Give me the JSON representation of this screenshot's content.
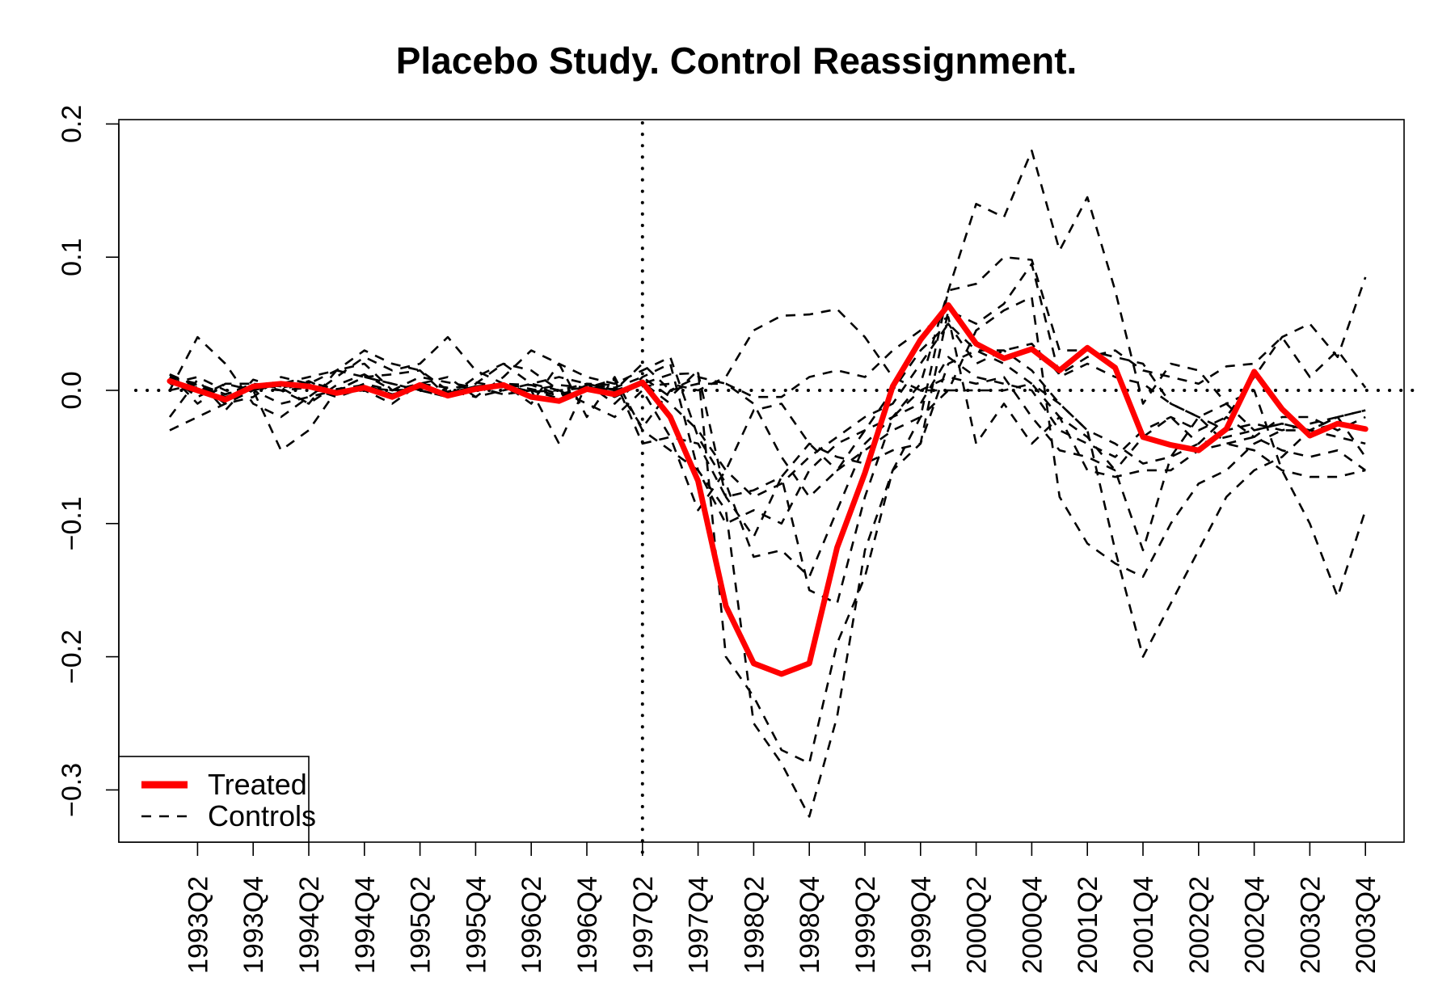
{
  "chart_data": {
    "type": "line",
    "title": "Placebo Study. Control Reassignment.",
    "xlabel": "",
    "ylabel": "",
    "x_tick_labels": [
      "1993Q2",
      "1993Q4",
      "1994Q2",
      "1994Q4",
      "1995Q2",
      "1995Q4",
      "1996Q2",
      "1996Q4",
      "1997Q2",
      "1997Q4",
      "1998Q2",
      "1998Q4",
      "1999Q2",
      "1999Q4",
      "2000Q2",
      "2000Q4",
      "2001Q2",
      "2001Q4",
      "2002Q2",
      "2002Q4",
      "2003Q2",
      "2003Q4"
    ],
    "y_ticks": [
      "−0.3",
      "−0.2",
      "−0.1",
      "0.0",
      "0.1",
      "0.2"
    ],
    "ylim": [
      -0.34,
      0.2
    ],
    "reference_lines": {
      "vertical_at": "1997Q2",
      "horizontal_at": 0.0
    },
    "legend": {
      "position": "bottom-left",
      "entries": [
        {
          "label": "Treated",
          "color": "#ff0000",
          "style": "solid"
        },
        {
          "label": "Controls",
          "color": "#000000",
          "style": "dashed"
        }
      ]
    },
    "x": [
      "1993Q1",
      "1993Q2",
      "1993Q3",
      "1993Q4",
      "1994Q1",
      "1994Q2",
      "1994Q3",
      "1994Q4",
      "1995Q1",
      "1995Q2",
      "1995Q3",
      "1995Q4",
      "1996Q1",
      "1996Q2",
      "1996Q3",
      "1996Q4",
      "1997Q1",
      "1997Q2",
      "1997Q3",
      "1997Q4",
      "1998Q1",
      "1998Q2",
      "1998Q3",
      "1998Q4",
      "1999Q1",
      "1999Q2",
      "1999Q3",
      "1999Q4",
      "2000Q1",
      "2000Q2",
      "2000Q3",
      "2000Q4",
      "2001Q1",
      "2001Q2",
      "2001Q3",
      "2001Q4",
      "2002Q1",
      "2002Q2",
      "2002Q3",
      "2002Q4",
      "2003Q1",
      "2003Q2",
      "2003Q3",
      "2003Q4"
    ],
    "series": [
      {
        "name": "Treated",
        "color": "#ff0000",
        "style": "solid",
        "values": [
          0.007,
          0.0,
          -0.007,
          0.003,
          0.005,
          0.003,
          -0.002,
          0.002,
          -0.005,
          0.004,
          -0.004,
          0.001,
          0.004,
          -0.005,
          -0.008,
          0.001,
          -0.003,
          0.006,
          -0.02,
          -0.068,
          -0.162,
          -0.205,
          -0.213,
          -0.205,
          -0.118,
          -0.062,
          0.003,
          0.038,
          0.064,
          0.035,
          0.024,
          0.031,
          0.015,
          0.032,
          0.017,
          -0.035,
          -0.041,
          -0.045,
          -0.029,
          0.014,
          -0.014,
          -0.034,
          -0.025,
          -0.029
        ]
      },
      {
        "style": "dashed",
        "color": "#000000",
        "values": [
          0.012,
          0.003,
          -0.008,
          0.004,
          0.002,
          0.006,
          0.001,
          0.004,
          -0.003,
          0.002,
          -0.002,
          0.003,
          0.005,
          0.001,
          -0.004,
          0.003,
          0.0,
          0.006,
          -0.01,
          -0.03,
          -0.06,
          -0.08,
          -0.07,
          -0.05,
          -0.035,
          -0.02,
          -0.01,
          0.02,
          0.05,
          0.03,
          0.02,
          0.005,
          -0.01,
          -0.03,
          -0.04,
          -0.055,
          -0.05,
          -0.04,
          -0.035,
          -0.03,
          -0.025,
          -0.03,
          -0.035,
          -0.04
        ]
      },
      {
        "style": "dashed",
        "color": "#000000",
        "values": [
          -0.03,
          -0.02,
          -0.01,
          0.0,
          0.005,
          0.01,
          0.015,
          0.01,
          0.005,
          0.0,
          -0.005,
          0.0,
          0.005,
          0.004,
          -0.003,
          0.002,
          0.008,
          -0.04,
          -0.035,
          -0.04,
          -0.08,
          -0.075,
          -0.065,
          -0.04,
          -0.05,
          -0.055,
          -0.045,
          -0.04,
          0.06,
          0.05,
          0.065,
          0.095,
          0.01,
          0.02,
          0.01,
          0.005,
          -0.01,
          -0.02,
          -0.03,
          -0.025,
          -0.03,
          -0.025,
          -0.02,
          -0.015
        ]
      },
      {
        "style": "dashed",
        "color": "#000000",
        "values": [
          0.0,
          0.04,
          0.02,
          -0.01,
          -0.02,
          -0.005,
          0.01,
          0.025,
          0.015,
          0.02,
          0.04,
          0.015,
          0.005,
          -0.01,
          0.02,
          0.01,
          0.005,
          0.015,
          0.025,
          -0.035,
          -0.07,
          -0.125,
          -0.12,
          -0.14,
          -0.09,
          -0.04,
          -0.02,
          0.005,
          0.075,
          0.14,
          0.13,
          0.18,
          0.105,
          0.145,
          0.075,
          -0.01,
          0.02,
          0.015,
          -0.01,
          -0.03,
          -0.025,
          -0.03,
          -0.02,
          -0.015
        ]
      },
      {
        "style": "dashed",
        "color": "#000000",
        "values": [
          0.01,
          -0.005,
          0.005,
          0.0,
          -0.01,
          -0.005,
          0.0,
          0.01,
          0.005,
          0.0,
          -0.005,
          0.01,
          0.02,
          0.015,
          0.0,
          -0.01,
          -0.02,
          0.0,
          -0.035,
          -0.09,
          -0.06,
          -0.015,
          -0.01,
          -0.04,
          -0.06,
          -0.045,
          -0.03,
          -0.02,
          0.075,
          0.08,
          0.1,
          0.098,
          0.03,
          0.03,
          0.025,
          0.02,
          -0.01,
          -0.02,
          -0.04,
          -0.035,
          -0.045,
          -0.05,
          -0.045,
          -0.06
        ]
      },
      {
        "style": "dashed",
        "color": "#000000",
        "values": [
          0.005,
          0.01,
          0.0,
          0.0,
          -0.045,
          -0.03,
          0.0,
          0.01,
          0.012,
          0.015,
          -0.005,
          0.005,
          0.02,
          0.005,
          0.0,
          0.005,
          -0.01,
          0.01,
          0.02,
          -0.06,
          -0.09,
          -0.25,
          -0.28,
          -0.32,
          -0.245,
          -0.12,
          -0.06,
          -0.04,
          0.02,
          0.03,
          0.03,
          0.015,
          -0.01,
          -0.03,
          -0.12,
          -0.2,
          -0.16,
          -0.12,
          -0.08,
          -0.06,
          -0.05,
          -0.03,
          -0.02,
          -0.05
        ]
      },
      {
        "style": "dashed",
        "color": "#000000",
        "values": [
          0.008,
          0.004,
          -0.005,
          0.002,
          0.0,
          0.007,
          -0.003,
          0.005,
          0.0,
          0.003,
          -0.001,
          0.006,
          0.002,
          0.0,
          -0.006,
          0.004,
          0.002,
          0.01,
          -0.005,
          0.015,
          -0.2,
          -0.23,
          -0.27,
          -0.28,
          -0.19,
          -0.14,
          -0.06,
          -0.02,
          0.0,
          0.045,
          0.06,
          0.07,
          -0.08,
          -0.115,
          -0.13,
          -0.14,
          -0.1,
          -0.07,
          -0.06,
          -0.04,
          -0.03,
          -0.03,
          -0.025,
          -0.03
        ]
      },
      {
        "style": "dashed",
        "color": "#000000",
        "values": [
          0.005,
          0.002,
          -0.003,
          0.003,
          0.0,
          0.002,
          -0.005,
          0.002,
          0.0,
          0.001,
          -0.002,
          0.003,
          0.004,
          -0.001,
          0.0,
          0.002,
          0.001,
          0.003,
          0.005,
          0.0,
          0.01,
          0.045,
          0.056,
          0.057,
          0.061,
          0.04,
          0.01,
          0.0,
          0.0,
          0.0,
          0.0,
          0.005,
          -0.02,
          -0.035,
          -0.06,
          -0.12,
          -0.05,
          -0.02,
          -0.01,
          0.0,
          -0.06,
          -0.1,
          -0.155,
          -0.09
        ]
      },
      {
        "style": "dashed",
        "color": "#000000",
        "values": [
          0.012,
          -0.01,
          0.005,
          0.005,
          0.0,
          -0.01,
          0.015,
          0.02,
          0.0,
          0.005,
          0.01,
          -0.005,
          0.0,
          0.005,
          0.01,
          0.005,
          0.0,
          0.02,
          0.0,
          0.005,
          0.005,
          -0.005,
          -0.005,
          0.01,
          0.015,
          0.01,
          0.03,
          0.045,
          0.055,
          -0.04,
          -0.01,
          -0.04,
          -0.02,
          -0.06,
          -0.065,
          -0.06,
          -0.06,
          -0.045,
          -0.04,
          -0.045,
          -0.06,
          -0.065,
          -0.065,
          -0.06
        ]
      },
      {
        "style": "dashed",
        "color": "#000000",
        "values": [
          0.0,
          0.005,
          -0.01,
          -0.005,
          0.01,
          0.005,
          0.015,
          0.03,
          0.02,
          0.015,
          0.0,
          -0.005,
          0.01,
          0.03,
          0.02,
          -0.02,
          0.01,
          -0.03,
          -0.045,
          -0.06,
          -0.1,
          -0.09,
          -0.1,
          -0.06,
          -0.04,
          -0.03,
          -0.02,
          -0.01,
          0.025,
          0.01,
          0.005,
          0.0,
          -0.03,
          -0.04,
          -0.05,
          -0.03,
          -0.02,
          -0.03,
          -0.02,
          0.01,
          0.04,
          0.05,
          0.025,
          0.085
        ]
      },
      {
        "style": "dashed",
        "color": "#000000",
        "values": [
          -0.02,
          0.008,
          -0.015,
          0.008,
          0.002,
          -0.01,
          0.004,
          0.012,
          0.0,
          0.01,
          0.006,
          0.002,
          -0.003,
          0.0,
          -0.04,
          0.005,
          0.004,
          -0.028,
          0.0,
          0.01,
          0.005,
          -0.01,
          -0.05,
          -0.08,
          -0.06,
          -0.03,
          0.0,
          0.03,
          0.05,
          0.02,
          0.03,
          0.035,
          0.012,
          0.025,
          0.03,
          0.015,
          0.01,
          0.005,
          0.018,
          0.02,
          0.04,
          0.01,
          0.03,
          0.002
        ]
      },
      {
        "style": "dashed",
        "color": "#000000",
        "values": [
          0.01,
          0.005,
          -0.003,
          0.005,
          0.003,
          0.004,
          -0.002,
          0.0,
          -0.01,
          0.005,
          0.002,
          0.003,
          -0.003,
          0.0,
          0.004,
          0.002,
          -0.005,
          0.005,
          0.012,
          0.013,
          -0.08,
          -0.11,
          -0.065,
          -0.15,
          -0.16,
          -0.08,
          -0.02,
          0.0,
          0.01,
          0.005,
          0.01,
          -0.02,
          -0.045,
          -0.05,
          -0.06,
          -0.035,
          -0.02,
          -0.04,
          -0.02,
          -0.035,
          -0.02,
          -0.02,
          -0.03,
          -0.02
        ]
      }
    ]
  }
}
